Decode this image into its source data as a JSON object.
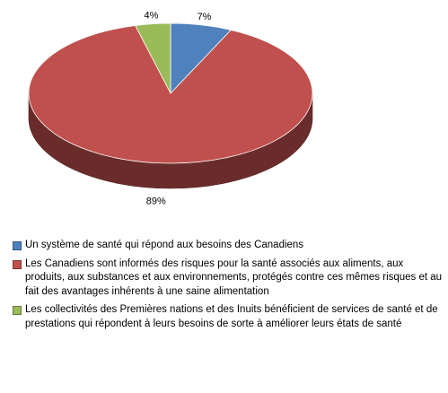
{
  "chart_data": {
    "type": "pie",
    "three_d": true,
    "slices": [
      {
        "label": "Un système de santé qui répond aux besoins des Canadiens",
        "value": 7,
        "value_label": "7%",
        "color": "#4f81bd"
      },
      {
        "label": "Les Canadiens sont informés des risques pour la santé associés aux aliments, aux produits, aux substances et aux environnements, protégés contre ces mêmes risques et au fait des avantages inhérents à une saine alimentation",
        "value": 89,
        "value_label": "89%",
        "color": "#c0504d"
      },
      {
        "label": "Les collectivités des Premières nations et des Inuits bénéficient de services de santé et de prestations qui répondent à leurs besoins de sorte à améliorer leurs états de santé",
        "value": 4,
        "value_label": "4%",
        "color": "#9bbb59"
      }
    ],
    "legend_position": "bottom"
  }
}
